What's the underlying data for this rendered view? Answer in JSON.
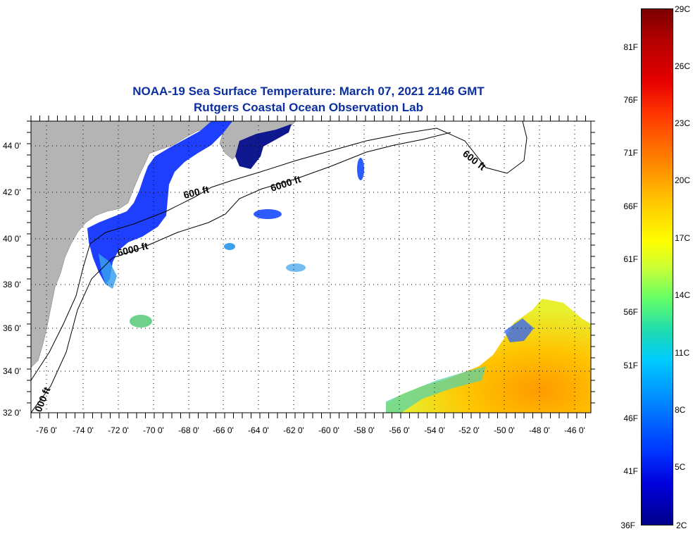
{
  "title": {
    "line1": "NOAA-19 Sea Surface Temperature:  March 07, 2021 2146 GMT",
    "line2": "Rutgers Coastal Ocean Observation Lab"
  },
  "map": {
    "lon_range": [
      -77,
      -45
    ],
    "lat_range": [
      32,
      45
    ],
    "lon_ticks": [
      "-76 0'",
      "-74 0'",
      "-72 0'",
      "-70 0'",
      "-68 0'",
      "-66 0'",
      "-64 0'",
      "-62 0'",
      "-60 0'",
      "-58 0'",
      "-56 0'",
      "-54 0'",
      "-52 0'",
      "-50 0'",
      "-48 0'",
      "-46 0'"
    ],
    "lat_ticks": [
      "32 0'",
      "34 0'",
      "36 0'",
      "38 0'",
      "40 0'",
      "42 0'",
      "44 0'"
    ],
    "contour_labels": [
      "600 ft",
      "6000 ft",
      "6000 ft",
      "600 ft",
      "000 ft"
    ],
    "colors": {
      "land": "#b4b4b4",
      "cold_water": "#1a3cff",
      "cool_water": "#2277ff",
      "warm_water": "#ffb000",
      "grid": "#000000"
    }
  },
  "colorbar": {
    "fahrenheit_labels": [
      "81F",
      "76F",
      "71F",
      "66F",
      "61F",
      "56F",
      "51F",
      "46F",
      "41F",
      "36F"
    ],
    "celsius_labels": [
      "29C",
      "26C",
      "23C",
      "20C",
      "17C",
      "14C",
      "11C",
      "8C",
      "5C",
      "2C"
    ],
    "range_f": [
      36,
      84
    ],
    "range_c": [
      2,
      29
    ]
  }
}
